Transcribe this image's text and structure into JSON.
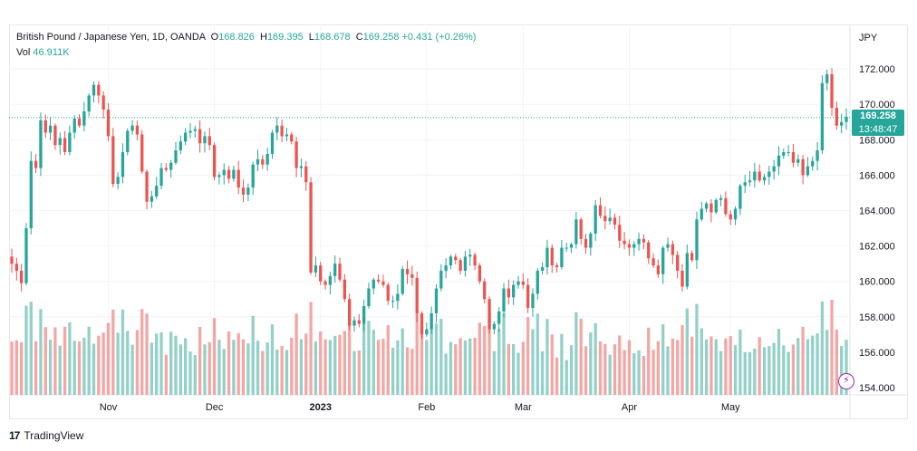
{
  "legend": {
    "symbol": "British Pound / Japanese Yen, 1D, OANDA",
    "o_label": "O",
    "o_value": "168.826",
    "h_label": "H",
    "h_value": "169.395",
    "l_label": "L",
    "l_value": "168.678",
    "c_label": "C",
    "c_value": "169.258",
    "change": "+0.431 (+0.26%)",
    "vol_label": "Vol",
    "vol_value": "46.911K"
  },
  "price_badge": {
    "price": "169.258",
    "countdown": "13:48:47"
  },
  "footer": {
    "logo_text": "TradingView"
  },
  "colors": {
    "up": "#26a69a",
    "down": "#ef5350",
    "vol_up": "#93d0c8",
    "vol_down": "#f4a6a4",
    "grid": "#f0f3fa",
    "text": "#131722"
  },
  "chart_data": {
    "type": "candlestick",
    "currency": "JPY",
    "ylim": [
      154,
      173
    ],
    "y_ticks": [
      "154.000",
      "156.000",
      "158.000",
      "160.000",
      "162.000",
      "164.000",
      "166.000",
      "168.000",
      "170.000",
      "172.000"
    ],
    "x_labels": [
      {
        "label": "Nov",
        "index": 20
      },
      {
        "label": "Dec",
        "index": 42
      },
      {
        "label": "2023",
        "index": 64
      },
      {
        "label": "Feb",
        "index": 86
      },
      {
        "label": "Mar",
        "index": 106
      },
      {
        "label": "Apr",
        "index": 128
      },
      {
        "label": "May",
        "index": 149
      }
    ],
    "last_price": 169.258,
    "close": [
      161.0,
      160.6,
      159.9,
      163.0,
      166.8,
      166.4,
      169.1,
      168.4,
      168.8,
      167.7,
      168.1,
      167.3,
      168.4,
      169.2,
      168.8,
      169.6,
      170.5,
      171.1,
      170.5,
      169.7,
      168.2,
      165.5,
      165.9,
      167.3,
      168.5,
      168.8,
      168.3,
      166.2,
      164.5,
      164.8,
      165.4,
      166.4,
      166.3,
      166.7,
      167.4,
      167.9,
      168.4,
      168.5,
      168.6,
      167.8,
      168.2,
      167.7,
      165.9,
      166.0,
      166.3,
      165.8,
      166.3,
      165.3,
      164.9,
      165.3,
      166.6,
      166.9,
      166.6,
      167.2,
      168.4,
      168.8,
      168.2,
      168.3,
      167.9,
      166.4,
      166.5,
      165.6,
      160.5,
      160.9,
      160.0,
      159.8,
      160.3,
      161.0,
      160.1,
      159.0,
      157.5,
      157.8,
      157.6,
      158.6,
      159.6,
      160.1,
      160.0,
      159.8,
      158.9,
      158.9,
      159.3,
      160.7,
      160.4,
      160.2,
      158.2,
      157.0,
      157.3,
      158.2,
      159.6,
      160.6,
      160.9,
      161.4,
      161.2,
      160.6,
      161.4,
      161.5,
      160.9,
      160.0,
      159.0,
      157.3,
      157.6,
      158.3,
      159.6,
      159.1,
      159.8,
      160.0,
      159.8,
      158.5,
      159.3,
      160.6,
      160.8,
      161.9,
      160.9,
      160.8,
      161.9,
      161.9,
      162.1,
      163.5,
      162.4,
      161.9,
      162.7,
      164.3,
      163.7,
      163.4,
      163.6,
      163.2,
      162.3,
      162.1,
      161.9,
      162.1,
      162.4,
      162.2,
      161.3,
      160.9,
      160.4,
      161.9,
      162.1,
      161.5,
      160.6,
      159.7,
      161.6,
      161.2,
      163.5,
      164.1,
      164.4,
      163.9,
      164.6,
      164.7,
      163.8,
      163.5,
      164.1,
      165.4,
      165.6,
      165.7,
      166.2,
      165.7,
      165.9,
      166.2,
      166.5,
      167.1,
      167.3,
      167.3,
      166.7,
      166.9,
      166.0,
      166.5,
      166.8,
      167.4,
      171.2,
      171.7,
      169.8,
      168.8,
      169.0,
      169.3
    ]
  }
}
